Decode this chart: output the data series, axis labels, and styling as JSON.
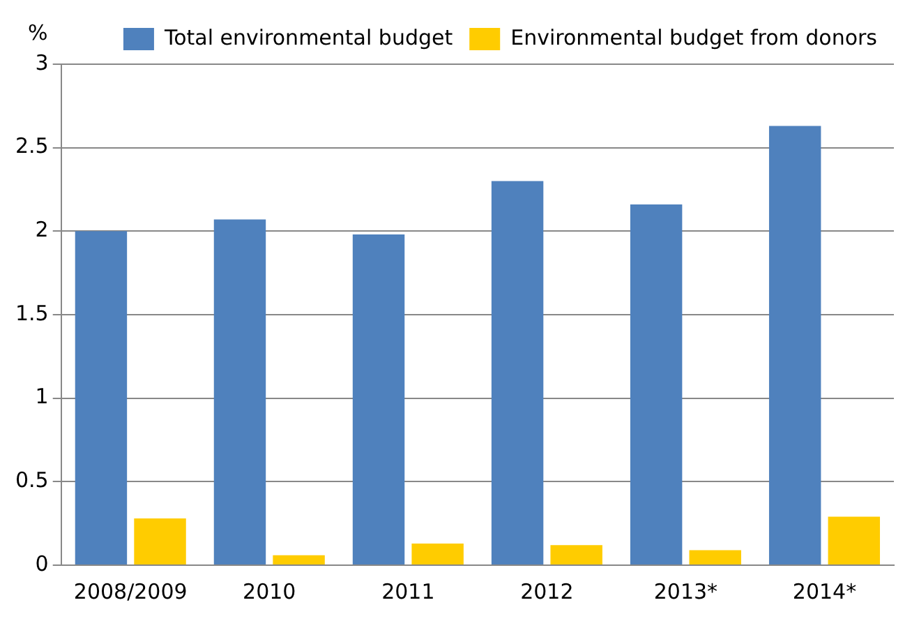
{
  "chart_data": {
    "type": "bar",
    "ylabel": "%",
    "categories": [
      "2008/2009",
      "2010",
      "2011",
      "2012",
      "2013*",
      "2014*"
    ],
    "series": [
      {
        "name": "Total environmental budget",
        "color": "#4f81bd",
        "values": [
          2.0,
          2.07,
          1.98,
          2.3,
          2.16,
          2.63
        ]
      },
      {
        "name": "Environmental budget from donors",
        "color": "#ffcc00",
        "values": [
          0.28,
          0.06,
          0.13,
          0.12,
          0.09,
          0.29
        ]
      }
    ],
    "ylim": [
      0,
      3
    ],
    "yticks": [
      0,
      0.5,
      1,
      1.5,
      2,
      2.5,
      3
    ],
    "grid": "y",
    "legend": "top right"
  }
}
